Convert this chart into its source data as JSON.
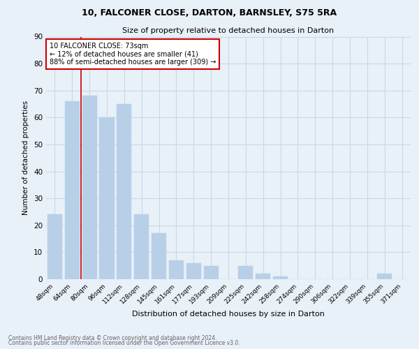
{
  "title1": "10, FALCONER CLOSE, DARTON, BARNSLEY, S75 5RA",
  "title2": "Size of property relative to detached houses in Darton",
  "xlabel": "Distribution of detached houses by size in Darton",
  "ylabel": "Number of detached properties",
  "categories": [
    "48sqm",
    "64sqm",
    "80sqm",
    "96sqm",
    "112sqm",
    "128sqm",
    "145sqm",
    "161sqm",
    "177sqm",
    "193sqm",
    "209sqm",
    "225sqm",
    "242sqm",
    "258sqm",
    "274sqm",
    "290sqm",
    "306sqm",
    "322sqm",
    "339sqm",
    "355sqm",
    "371sqm"
  ],
  "values": [
    24,
    66,
    68,
    60,
    65,
    24,
    17,
    7,
    6,
    5,
    0,
    5,
    2,
    1,
    0,
    0,
    0,
    0,
    0,
    2,
    0
  ],
  "bar_color": "#b8cfe8",
  "bar_edge_color": "#b8cfe8",
  "marker_line_color": "#cc0000",
  "annotation_box_color": "#ffffff",
  "annotation_box_edgecolor": "#cc0000",
  "ylim": [
    0,
    90
  ],
  "yticks": [
    0,
    10,
    20,
    30,
    40,
    50,
    60,
    70,
    80,
    90
  ],
  "grid_color": "#c8d8e8",
  "fig_facecolor": "#e8f0f8",
  "ax_facecolor": "#e8f0f8",
  "footnote1": "Contains HM Land Registry data © Crown copyright and database right 2024.",
  "footnote2": "Contains public sector information licensed under the Open Government Licence v3.0."
}
